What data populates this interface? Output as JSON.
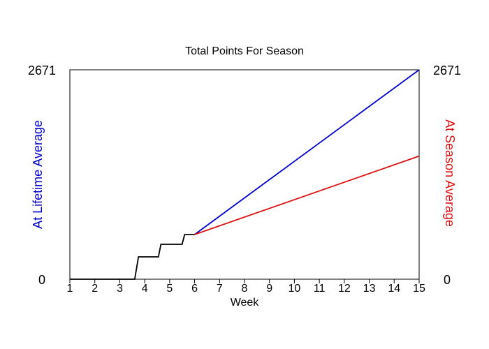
{
  "chart_data": {
    "type": "line",
    "title": "Total Points For Season",
    "xlabel": "Week",
    "ylabel_left": "At Lifetime Average",
    "ylabel_right": "At Season Average",
    "xlim": [
      1,
      15
    ],
    "ylim": [
      0,
      2671
    ],
    "x_ticks": [
      "1",
      "2",
      "3",
      "4",
      "5",
      "6",
      "7",
      "8",
      "9",
      "10",
      "11",
      "12",
      "13",
      "14",
      "15"
    ],
    "y_tick_labels": {
      "left_min": "0",
      "left_max": "2671",
      "right_min": "0",
      "right_max": "2671"
    },
    "grid": false,
    "colors": {
      "actual": "#000000",
      "lifetime": "#0000cc",
      "season": "#dd1111",
      "left_label": "#0000cc",
      "right_label": "#dd1111"
    },
    "series": [
      {
        "key": "actual",
        "values": [
          [
            1,
            0
          ],
          [
            3.6,
            0
          ],
          [
            3.75,
            285
          ],
          [
            4.55,
            285
          ],
          [
            4.65,
            445
          ],
          [
            5.5,
            445
          ],
          [
            5.6,
            570
          ],
          [
            6,
            570
          ]
        ]
      },
      {
        "key": "lifetime",
        "values": [
          [
            6,
            570
          ],
          [
            15,
            2671
          ]
        ]
      },
      {
        "key": "season",
        "values": [
          [
            6,
            570
          ],
          [
            15,
            1570
          ]
        ]
      }
    ]
  }
}
